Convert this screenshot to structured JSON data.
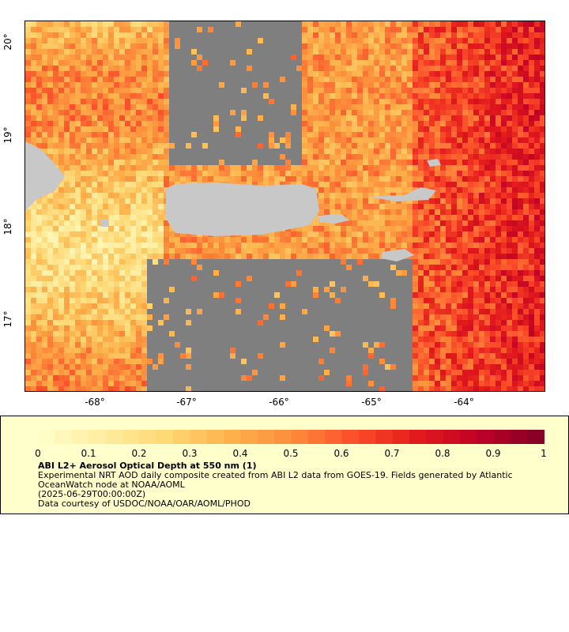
{
  "map": {
    "x_ticks": [
      "-68°",
      "-67°",
      "-66°",
      "-65°",
      "-64°"
    ],
    "y_ticks": [
      "20°",
      "19°",
      "18°",
      "17°"
    ],
    "land_color": "#c8c8c8",
    "no_data_color": "#7f7f7f"
  },
  "legend": {
    "title": "ABI L2+ Aerosol Optical Depth at 550 nm (1)",
    "description_line1": "Experimental NRT AOD daily composite created from ABI L2 data from GOES-19. Fields generated by Atlantic",
    "description_line2": "OceanWatch node at NOAA/AOML",
    "timestamp": "(2025-06-29T00:00:00Z)",
    "credit": "Data courtesy of USDOC/NOAA/OAR/AOML/PHOD",
    "colorbar_ticks": [
      "0",
      "0.1",
      "0.2",
      "0.3",
      "0.4",
      "0.5",
      "0.6",
      "0.7",
      "0.8",
      "0.9",
      "1"
    ],
    "colorbar_colors": [
      "#ffffcc",
      "#ffeda0",
      "#fed976",
      "#feb24c",
      "#fd8d3c",
      "#fc4e2a",
      "#e31a1c",
      "#bd0026",
      "#800026"
    ],
    "background_color": "#ffffcc"
  }
}
